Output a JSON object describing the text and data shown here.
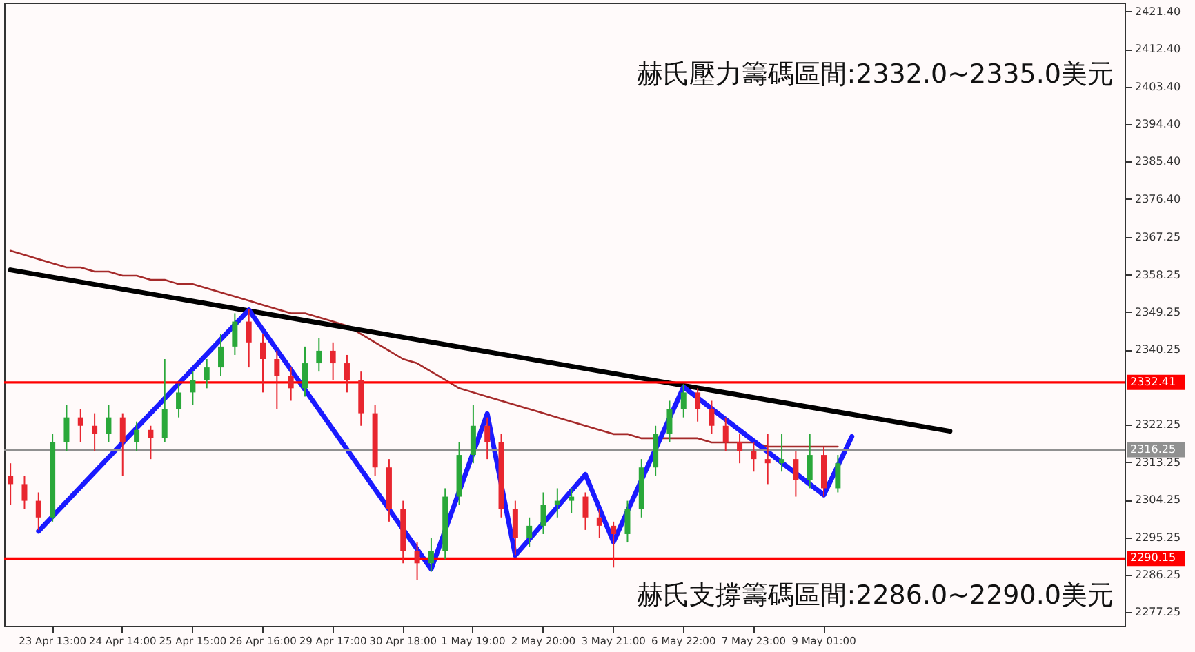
{
  "chart_data": {
    "type": "candlestick",
    "categories": [
      null,
      null,
      null,
      "23 Apr 13:00",
      null,
      null,
      null,
      null,
      "24 Apr 14:00",
      null,
      null,
      null,
      null,
      "25 Apr 15:00",
      null,
      null,
      null,
      null,
      "26 Apr 16:00",
      null,
      null,
      null,
      null,
      "29 Apr 17:00",
      null,
      null,
      null,
      null,
      "30 Apr 18:00",
      null,
      null,
      null,
      null,
      "1 May 19:00",
      null,
      null,
      null,
      null,
      "2 May 20:00",
      null,
      null,
      null,
      null,
      "3 May 21:00",
      null,
      null,
      null,
      null,
      "6 May 22:00",
      null,
      null,
      null,
      null,
      "7 May 23:00",
      null,
      null,
      null,
      null,
      "9 May 01:00",
      null,
      null,
      null,
      null,
      null,
      null,
      null,
      null,
      null,
      null,
      null,
      null,
      null,
      null,
      null,
      null,
      null,
      null,
      null,
      null,
      null
    ],
    "ohlc": [
      [
        2310,
        2313,
        2303,
        2308
      ],
      [
        2308,
        2310,
        2302,
        2304
      ],
      [
        2304,
        2306,
        2297,
        2300
      ],
      [
        2300,
        2320,
        2299,
        2318
      ],
      [
        2318,
        2327,
        2316,
        2324
      ],
      [
        2324,
        2326,
        2318,
        2322
      ],
      [
        2322,
        2325,
        2316,
        2320
      ],
      [
        2320,
        2327,
        2318,
        2324
      ],
      [
        2324,
        2325,
        2310,
        2318
      ],
      [
        2318,
        2323,
        2316,
        2321
      ],
      [
        2321,
        2322,
        2314,
        2319
      ],
      [
        2319,
        2338,
        2318,
        2326
      ],
      [
        2326,
        2332,
        2324,
        2330
      ],
      [
        2330,
        2335,
        2327,
        2333
      ],
      [
        2333,
        2338,
        2331,
        2336
      ],
      [
        2336,
        2344,
        2334,
        2341
      ],
      [
        2341,
        2349,
        2339,
        2347
      ],
      [
        2347,
        2350,
        2336,
        2342
      ],
      [
        2342,
        2344,
        2330,
        2338
      ],
      [
        2338,
        2340,
        2326,
        2334
      ],
      [
        2334,
        2336,
        2328,
        2331
      ],
      [
        2331,
        2341,
        2329,
        2337
      ],
      [
        2337,
        2343,
        2335,
        2340
      ],
      [
        2340,
        2342,
        2333,
        2337
      ],
      [
        2337,
        2339,
        2330,
        2333
      ],
      [
        2333,
        2335,
        2322,
        2325
      ],
      [
        2325,
        2327,
        2310,
        2312
      ],
      [
        2312,
        2314,
        2299,
        2302
      ],
      [
        2302,
        2304,
        2289,
        2292
      ],
      [
        2292,
        2294,
        2285,
        2289
      ],
      [
        2289,
        2295,
        2287,
        2292
      ],
      [
        2292,
        2307,
        2290,
        2305
      ],
      [
        2305,
        2318,
        2303,
        2315
      ],
      [
        2315,
        2327,
        2313,
        2322
      ],
      [
        2322,
        2324,
        2314,
        2318
      ],
      [
        2318,
        2320,
        2300,
        2302
      ],
      [
        2302,
        2304,
        2291,
        2295
      ],
      [
        2295,
        2300,
        2293,
        2298
      ],
      [
        2298,
        2306,
        2296,
        2303
      ],
      [
        2303,
        2307,
        2300,
        2304
      ],
      [
        2304,
        2307,
        2301,
        2305
      ],
      [
        2305,
        2306,
        2297,
        2300
      ],
      [
        2300,
        2302,
        2295,
        2298
      ],
      [
        2298,
        2299,
        2288,
        2296
      ],
      [
        2296,
        2304,
        2294,
        2302
      ],
      [
        2302,
        2314,
        2300,
        2312
      ],
      [
        2312,
        2322,
        2310,
        2320
      ],
      [
        2320,
        2328,
        2318,
        2326
      ],
      [
        2326,
        2332,
        2324,
        2330
      ],
      [
        2330,
        2331,
        2323,
        2326
      ],
      [
        2326,
        2328,
        2320,
        2322
      ],
      [
        2322,
        2324,
        2316,
        2318
      ],
      [
        2318,
        2320,
        2313,
        2316
      ],
      [
        2316,
        2318,
        2311,
        2314
      ],
      [
        2314,
        2320,
        2308,
        2313
      ],
      [
        2313,
        2320,
        2311,
        2314
      ],
      [
        2314,
        2316,
        2305,
        2309
      ],
      [
        2309,
        2320,
        2307,
        2315
      ],
      [
        2315,
        2317,
        2305,
        2307
      ],
      [
        2307,
        2315,
        2306,
        2313
      ],
      null,
      null,
      null,
      null,
      null,
      null,
      null,
      null,
      null,
      null,
      null,
      null,
      null,
      null,
      null,
      null,
      null,
      null,
      null,
      null
    ],
    "series": [
      {
        "type": "line",
        "color": "#a52a2a",
        "values": [
          2364,
          2363,
          2362,
          2361,
          2360,
          2360,
          2359,
          2359,
          2358,
          2358,
          2357,
          2357,
          2356,
          2356,
          2355,
          2354,
          2353,
          2352,
          2351,
          2350,
          2349,
          2349,
          2348,
          2347,
          2346,
          2344,
          2342,
          2340,
          2338,
          2337,
          2335,
          2333,
          2331,
          2330,
          2329,
          2328,
          2327,
          2326,
          2325,
          2324,
          2323,
          2322,
          2321,
          2320,
          2320,
          2319,
          2319,
          2319,
          2319,
          2319,
          2318,
          2318,
          2318,
          2318,
          2317,
          2317,
          2317,
          2317,
          2317,
          2317,
          null,
          null,
          null,
          null,
          null,
          null,
          null,
          null,
          null,
          null,
          null,
          null,
          null,
          null,
          null,
          null,
          null,
          null,
          null,
          null
        ]
      },
      {
        "type": "line",
        "color": "#000000",
        "values": [
          2359.4,
          null,
          null,
          null,
          null,
          null,
          null,
          null,
          null,
          null,
          null,
          null,
          null,
          null,
          null,
          null,
          null,
          null,
          null,
          null,
          null,
          null,
          null,
          null,
          null,
          null,
          null,
          null,
          null,
          null,
          null,
          null,
          null,
          null,
          null,
          null,
          null,
          null,
          null,
          null,
          null,
          null,
          null,
          null,
          null,
          null,
          null,
          null,
          null,
          null,
          null,
          null,
          null,
          null,
          null,
          null,
          null,
          null,
          null,
          null,
          null,
          null,
          null,
          null,
          null,
          null,
          null,
          2320.7,
          null,
          null,
          null,
          null,
          null,
          null,
          null,
          null,
          null,
          null,
          null,
          null
        ]
      },
      {
        "type": "line",
        "color": "#1a1aff",
        "values": [
          null,
          null,
          2296.7,
          null,
          null,
          null,
          null,
          null,
          null,
          null,
          null,
          null,
          null,
          null,
          null,
          null,
          null,
          2349.8,
          null,
          null,
          null,
          null,
          null,
          null,
          null,
          null,
          null,
          null,
          null,
          null,
          2287.6,
          null,
          null,
          null,
          2324.9,
          null,
          2290.9,
          null,
          null,
          null,
          null,
          2310.3,
          null,
          2294.1,
          null,
          null,
          null,
          null,
          2331.3,
          null,
          null,
          null,
          null,
          null,
          null,
          null,
          null,
          null,
          2305.4,
          null,
          2319.4,
          null,
          null,
          null,
          null,
          null,
          null,
          null,
          null,
          null,
          null,
          null,
          null,
          null,
          null,
          null,
          null,
          null,
          null,
          null
        ]
      }
    ],
    "ylim": [
      2274,
      2423.5
    ],
    "yticks": [
      {
        "value": 2277.25,
        "label": "2277.25"
      },
      {
        "value": 2286.25,
        "label": "2286.25"
      },
      {
        "value": 2295.25,
        "label": "2295.25"
      },
      {
        "value": 2304.25,
        "label": "2304.25"
      },
      {
        "value": 2313.25,
        "label": "2313.25"
      },
      {
        "value": 2322.25,
        "label": "2322.25"
      },
      {
        "value": 2340.25,
        "label": "2340.25"
      },
      {
        "value": 2349.25,
        "label": "2349.25"
      },
      {
        "value": 2358.25,
        "label": "2358.25"
      },
      {
        "value": 2367.25,
        "label": "2367.25"
      },
      {
        "value": 2376.4,
        "label": "2376.40"
      },
      {
        "value": 2385.4,
        "label": "2385.40"
      },
      {
        "value": 2394.4,
        "label": "2394.40"
      },
      {
        "value": 2403.4,
        "label": "2403.40"
      },
      {
        "value": 2412.4,
        "label": "2412.40"
      },
      {
        "value": 2421.4,
        "label": "2421.40"
      }
    ],
    "ref_lines": [
      {
        "axis": "y",
        "value": 2332.41,
        "label": "2332.41",
        "color": "#ff0000"
      },
      {
        "axis": "y",
        "value": 2290.15,
        "label": "2290.15",
        "color": "#ff0000"
      },
      {
        "axis": "y",
        "value": 2316.25,
        "label": "2316.25",
        "color": "#909090"
      }
    ],
    "annotations": [
      "赫氏壓力籌碼區間:2332.0~2335.0美元",
      "赫氏支撐籌碼區間:2286.0~2290.0美元"
    ]
  }
}
